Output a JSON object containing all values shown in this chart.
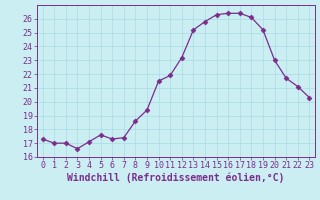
{
  "x": [
    0,
    1,
    2,
    3,
    4,
    5,
    6,
    7,
    8,
    9,
    10,
    11,
    12,
    13,
    14,
    15,
    16,
    17,
    18,
    19,
    20,
    21,
    22,
    23
  ],
  "y": [
    17.3,
    17.0,
    17.0,
    16.6,
    17.1,
    17.6,
    17.3,
    17.4,
    18.6,
    19.4,
    21.5,
    21.9,
    23.2,
    25.2,
    25.8,
    26.3,
    26.4,
    26.4,
    26.1,
    25.2,
    23.0,
    21.7,
    21.1,
    20.3
  ],
  "line_color": "#7b2d8b",
  "marker": "D",
  "marker_size": 2.5,
  "bg_color": "#cbeef3",
  "grid_color": "#a8dde4",
  "xlabel": "Windchill (Refroidissement éolien,°C)",
  "xlim": [
    -0.5,
    23.5
  ],
  "ylim": [
    16,
    27
  ],
  "yticks": [
    16,
    17,
    18,
    19,
    20,
    21,
    22,
    23,
    24,
    25,
    26
  ],
  "xticks": [
    0,
    1,
    2,
    3,
    4,
    5,
    6,
    7,
    8,
    9,
    10,
    11,
    12,
    13,
    14,
    15,
    16,
    17,
    18,
    19,
    20,
    21,
    22,
    23
  ],
  "tick_label_size": 6.0,
  "xlabel_size": 7.0
}
